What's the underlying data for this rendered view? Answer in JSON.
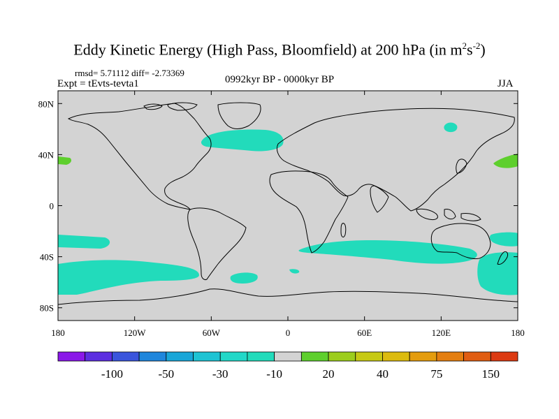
{
  "title": {
    "main": "Eddy Kinetic Energy (High Pass, Bloomfield) at 200 hPa (in m",
    "sup1": "2",
    "mid": "s",
    "sup2": "-2",
    "end": ")"
  },
  "stats": {
    "rmsd_label": "rmsd= 5.71112 diff= -2.73369",
    "experiment": "Expt = tEvts-tevta1",
    "period": "0992kyr BP - 0000kyr BP",
    "season": "JJA"
  },
  "map": {
    "land_fill": "#d3d3d3",
    "coast_color": "#000000",
    "lat_labels": [
      "80N",
      "40N",
      "0",
      "40S",
      "80S"
    ],
    "lat_values": [
      80,
      40,
      0,
      -40,
      -80
    ],
    "lon_labels": [
      "180",
      "120W",
      "60W",
      "0",
      "60E",
      "120E",
      "180"
    ],
    "lon_values": [
      -180,
      -120,
      -60,
      0,
      60,
      120,
      180
    ],
    "anomaly_regions": [
      {
        "name": "north-atlantic",
        "color": "#22dbbb"
      },
      {
        "name": "north-pacific-west",
        "color": "#5ecf2d"
      },
      {
        "name": "north-pacific-east",
        "color": "#5ecf2d"
      },
      {
        "name": "siberia",
        "color": "#22dbbb"
      },
      {
        "name": "south-pacific",
        "color": "#22dbbb"
      },
      {
        "name": "south-indian",
        "color": "#22dbbb"
      },
      {
        "name": "south-atlantic",
        "color": "#22dbbb"
      },
      {
        "name": "tasman",
        "color": "#22dbbb"
      }
    ]
  },
  "colorbar": {
    "colors": [
      "#8a18e8",
      "#5c2ee0",
      "#3a55dc",
      "#1f86dc",
      "#19a6d8",
      "#1ec3d3",
      "#22d8c8",
      "#22dbbb",
      "#d3d3d3",
      "#5ecf2d",
      "#9ccd1c",
      "#c6c914",
      "#dcbb0e",
      "#e49c0e",
      "#e47e10",
      "#e05d12",
      "#dc3a12"
    ],
    "tick_labels": [
      "-100",
      "-50",
      "-30",
      "-10",
      "20",
      "40",
      "75",
      "150"
    ],
    "tick_after_box": [
      2,
      4,
      6,
      8,
      10,
      12,
      14,
      16
    ]
  }
}
